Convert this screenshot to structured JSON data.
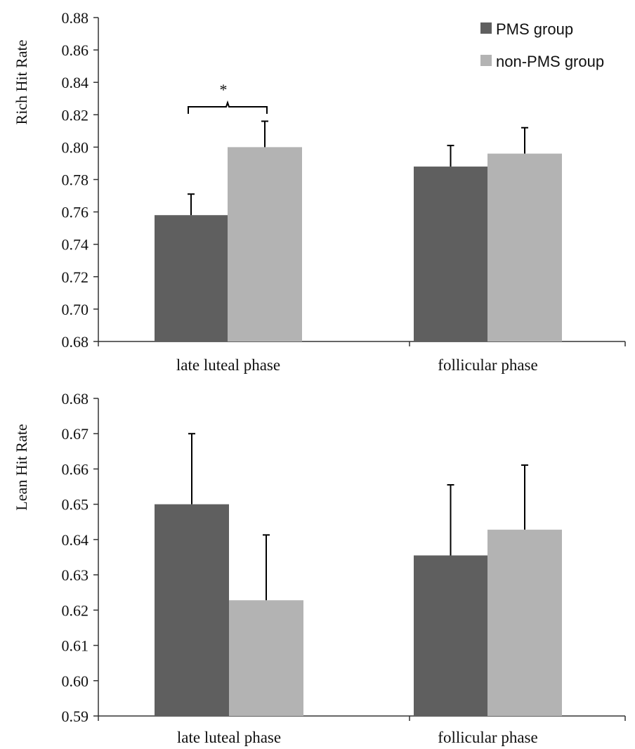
{
  "chart_data": [
    {
      "type": "bar",
      "ylabel": "Rich Hit Rate",
      "ylim": [
        0.68,
        0.88
      ],
      "yticks": [
        "0.68",
        "0.70",
        "0.72",
        "0.74",
        "0.76",
        "0.78",
        "0.80",
        "0.82",
        "0.84",
        "0.86",
        "0.88"
      ],
      "categories": [
        "late luteal phase",
        "follicular phase"
      ],
      "series": [
        {
          "name": "PMS group",
          "color": "#5f5f5f",
          "values": [
            0.758,
            0.788
          ],
          "errors": [
            0.013,
            0.013
          ]
        },
        {
          "name": "non-PMS group",
          "color": "#b3b3b3",
          "values": [
            0.8,
            0.796
          ],
          "errors": [
            0.016,
            0.016
          ]
        }
      ],
      "legend": "top-right",
      "significance": {
        "label": "*",
        "category": "late luteal phase"
      },
      "grid": false
    },
    {
      "type": "bar",
      "ylabel": "Lean Hit Rate",
      "ylim": [
        0.59,
        0.68
      ],
      "yticks": [
        "0.59",
        "0.60",
        "0.61",
        "0.62",
        "0.63",
        "0.64",
        "0.65",
        "0.66",
        "0.67",
        "0.68"
      ],
      "categories": [
        "late luteal phase",
        "follicular phase"
      ],
      "series": [
        {
          "name": "PMS group",
          "color": "#5f5f5f",
          "values": [
            0.65,
            0.6355
          ],
          "errors": [
            0.02,
            0.02
          ]
        },
        {
          "name": "non-PMS group",
          "color": "#b3b3b3",
          "values": [
            0.6228,
            0.6428
          ],
          "errors": [
            0.0185,
            0.0183
          ]
        }
      ],
      "grid": false
    }
  ]
}
